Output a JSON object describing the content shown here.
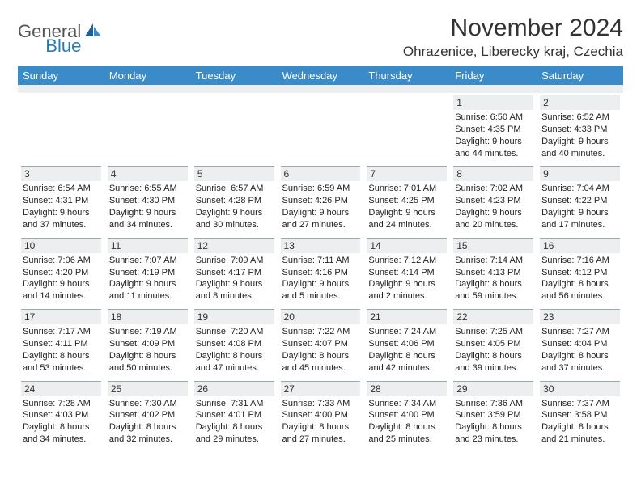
{
  "brand": {
    "part1": "General",
    "part2": "Blue"
  },
  "title": "November 2024",
  "location": "Ohrazenice, Liberecky kraj, Czechia",
  "colors": {
    "header_bg": "#3b8bc9",
    "header_text": "#ffffff",
    "daynum_bg": "#eceeef",
    "daynum_border": "#99aabb",
    "brand_gray": "#555555",
    "brand_blue": "#2a7ab0"
  },
  "day_headers": [
    "Sunday",
    "Monday",
    "Tuesday",
    "Wednesday",
    "Thursday",
    "Friday",
    "Saturday"
  ],
  "weeks": [
    [
      {
        "n": "",
        "sr": "",
        "ss": "",
        "d1": "",
        "d2": ""
      },
      {
        "n": "",
        "sr": "",
        "ss": "",
        "d1": "",
        "d2": ""
      },
      {
        "n": "",
        "sr": "",
        "ss": "",
        "d1": "",
        "d2": ""
      },
      {
        "n": "",
        "sr": "",
        "ss": "",
        "d1": "",
        "d2": ""
      },
      {
        "n": "",
        "sr": "",
        "ss": "",
        "d1": "",
        "d2": ""
      },
      {
        "n": "1",
        "sr": "Sunrise: 6:50 AM",
        "ss": "Sunset: 4:35 PM",
        "d1": "Daylight: 9 hours",
        "d2": "and 44 minutes."
      },
      {
        "n": "2",
        "sr": "Sunrise: 6:52 AM",
        "ss": "Sunset: 4:33 PM",
        "d1": "Daylight: 9 hours",
        "d2": "and 40 minutes."
      }
    ],
    [
      {
        "n": "3",
        "sr": "Sunrise: 6:54 AM",
        "ss": "Sunset: 4:31 PM",
        "d1": "Daylight: 9 hours",
        "d2": "and 37 minutes."
      },
      {
        "n": "4",
        "sr": "Sunrise: 6:55 AM",
        "ss": "Sunset: 4:30 PM",
        "d1": "Daylight: 9 hours",
        "d2": "and 34 minutes."
      },
      {
        "n": "5",
        "sr": "Sunrise: 6:57 AM",
        "ss": "Sunset: 4:28 PM",
        "d1": "Daylight: 9 hours",
        "d2": "and 30 minutes."
      },
      {
        "n": "6",
        "sr": "Sunrise: 6:59 AM",
        "ss": "Sunset: 4:26 PM",
        "d1": "Daylight: 9 hours",
        "d2": "and 27 minutes."
      },
      {
        "n": "7",
        "sr": "Sunrise: 7:01 AM",
        "ss": "Sunset: 4:25 PM",
        "d1": "Daylight: 9 hours",
        "d2": "and 24 minutes."
      },
      {
        "n": "8",
        "sr": "Sunrise: 7:02 AM",
        "ss": "Sunset: 4:23 PM",
        "d1": "Daylight: 9 hours",
        "d2": "and 20 minutes."
      },
      {
        "n": "9",
        "sr": "Sunrise: 7:04 AM",
        "ss": "Sunset: 4:22 PM",
        "d1": "Daylight: 9 hours",
        "d2": "and 17 minutes."
      }
    ],
    [
      {
        "n": "10",
        "sr": "Sunrise: 7:06 AM",
        "ss": "Sunset: 4:20 PM",
        "d1": "Daylight: 9 hours",
        "d2": "and 14 minutes."
      },
      {
        "n": "11",
        "sr": "Sunrise: 7:07 AM",
        "ss": "Sunset: 4:19 PM",
        "d1": "Daylight: 9 hours",
        "d2": "and 11 minutes."
      },
      {
        "n": "12",
        "sr": "Sunrise: 7:09 AM",
        "ss": "Sunset: 4:17 PM",
        "d1": "Daylight: 9 hours",
        "d2": "and 8 minutes."
      },
      {
        "n": "13",
        "sr": "Sunrise: 7:11 AM",
        "ss": "Sunset: 4:16 PM",
        "d1": "Daylight: 9 hours",
        "d2": "and 5 minutes."
      },
      {
        "n": "14",
        "sr": "Sunrise: 7:12 AM",
        "ss": "Sunset: 4:14 PM",
        "d1": "Daylight: 9 hours",
        "d2": "and 2 minutes."
      },
      {
        "n": "15",
        "sr": "Sunrise: 7:14 AM",
        "ss": "Sunset: 4:13 PM",
        "d1": "Daylight: 8 hours",
        "d2": "and 59 minutes."
      },
      {
        "n": "16",
        "sr": "Sunrise: 7:16 AM",
        "ss": "Sunset: 4:12 PM",
        "d1": "Daylight: 8 hours",
        "d2": "and 56 minutes."
      }
    ],
    [
      {
        "n": "17",
        "sr": "Sunrise: 7:17 AM",
        "ss": "Sunset: 4:11 PM",
        "d1": "Daylight: 8 hours",
        "d2": "and 53 minutes."
      },
      {
        "n": "18",
        "sr": "Sunrise: 7:19 AM",
        "ss": "Sunset: 4:09 PM",
        "d1": "Daylight: 8 hours",
        "d2": "and 50 minutes."
      },
      {
        "n": "19",
        "sr": "Sunrise: 7:20 AM",
        "ss": "Sunset: 4:08 PM",
        "d1": "Daylight: 8 hours",
        "d2": "and 47 minutes."
      },
      {
        "n": "20",
        "sr": "Sunrise: 7:22 AM",
        "ss": "Sunset: 4:07 PM",
        "d1": "Daylight: 8 hours",
        "d2": "and 45 minutes."
      },
      {
        "n": "21",
        "sr": "Sunrise: 7:24 AM",
        "ss": "Sunset: 4:06 PM",
        "d1": "Daylight: 8 hours",
        "d2": "and 42 minutes."
      },
      {
        "n": "22",
        "sr": "Sunrise: 7:25 AM",
        "ss": "Sunset: 4:05 PM",
        "d1": "Daylight: 8 hours",
        "d2": "and 39 minutes."
      },
      {
        "n": "23",
        "sr": "Sunrise: 7:27 AM",
        "ss": "Sunset: 4:04 PM",
        "d1": "Daylight: 8 hours",
        "d2": "and 37 minutes."
      }
    ],
    [
      {
        "n": "24",
        "sr": "Sunrise: 7:28 AM",
        "ss": "Sunset: 4:03 PM",
        "d1": "Daylight: 8 hours",
        "d2": "and 34 minutes."
      },
      {
        "n": "25",
        "sr": "Sunrise: 7:30 AM",
        "ss": "Sunset: 4:02 PM",
        "d1": "Daylight: 8 hours",
        "d2": "and 32 minutes."
      },
      {
        "n": "26",
        "sr": "Sunrise: 7:31 AM",
        "ss": "Sunset: 4:01 PM",
        "d1": "Daylight: 8 hours",
        "d2": "and 29 minutes."
      },
      {
        "n": "27",
        "sr": "Sunrise: 7:33 AM",
        "ss": "Sunset: 4:00 PM",
        "d1": "Daylight: 8 hours",
        "d2": "and 27 minutes."
      },
      {
        "n": "28",
        "sr": "Sunrise: 7:34 AM",
        "ss": "Sunset: 4:00 PM",
        "d1": "Daylight: 8 hours",
        "d2": "and 25 minutes."
      },
      {
        "n": "29",
        "sr": "Sunrise: 7:36 AM",
        "ss": "Sunset: 3:59 PM",
        "d1": "Daylight: 8 hours",
        "d2": "and 23 minutes."
      },
      {
        "n": "30",
        "sr": "Sunrise: 7:37 AM",
        "ss": "Sunset: 3:58 PM",
        "d1": "Daylight: 8 hours",
        "d2": "and 21 minutes."
      }
    ]
  ]
}
